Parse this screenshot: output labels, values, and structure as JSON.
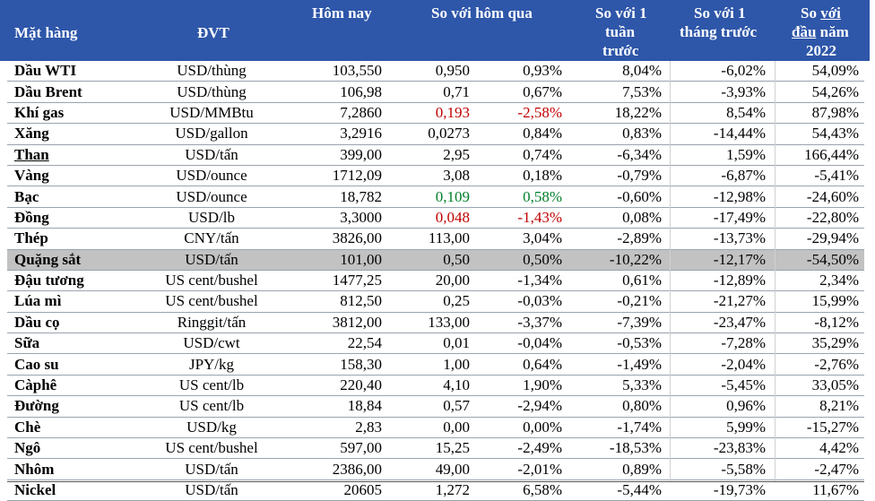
{
  "headers": {
    "item": "Mặt hàng",
    "unit": "ĐVT",
    "today": "Hôm nay",
    "vs_yesterday": "So với hôm qua",
    "vs_week_1": "So với 1",
    "vs_week_2": "tuần",
    "vs_week_3": "trước",
    "vs_month_1": "So với 1",
    "vs_month_2": "tháng trước",
    "ytd_so": "So",
    "ytd_voi": "với",
    "ytd_dau": "đầu",
    "ytd_nam": "năm",
    "ytd_year": "2022"
  },
  "colors": {
    "header_bg": "#2e56a9",
    "header_text": "#ffffff",
    "red": "#c00000",
    "green": "#00802b",
    "highlight_row": "#c2c2c2"
  },
  "rows": [
    {
      "name": "Dầu WTI",
      "unit": "USD/thùng",
      "today": "103,550",
      "chg": "0,950",
      "pct": "0,93%",
      "week": "8,04%",
      "month": "-6,02%",
      "ytd": "54,09%"
    },
    {
      "name": "Dầu Brent",
      "unit": "USD/thùng",
      "today": "106,98",
      "chg": "0,71",
      "pct": "0,67%",
      "week": "7,53%",
      "month": "-3,93%",
      "ytd": "54,26%"
    },
    {
      "name": "Khí gas",
      "unit": "USD/MMBtu",
      "today": "7,2860",
      "chg": "0,193",
      "pct": "-2,58%",
      "week": "18,22%",
      "month": "8,54%",
      "ytd": "87,98%",
      "color": "red"
    },
    {
      "name": "Xăng",
      "unit": "USD/gallon",
      "today": "3,2916",
      "chg": "0,0273",
      "pct": "0,84%",
      "week": "0,83%",
      "month": "-14,44%",
      "ytd": "54,43%"
    },
    {
      "name": "Than",
      "unit": "USD/tấn",
      "today": "399,00",
      "chg": "2,95",
      "pct": "0,74%",
      "week": "-6,34%",
      "month": "1,59%",
      "ytd": "166,44%",
      "underline": true
    },
    {
      "name": "Vàng",
      "unit": "USD/ounce",
      "today": "1712,09",
      "chg": "3,08",
      "pct": "0,18%",
      "week": "-0,79%",
      "month": "-6,87%",
      "ytd": "-5,41%"
    },
    {
      "name": "Bạc",
      "unit": "USD/ounce",
      "today": "18,782",
      "chg": "0,109",
      "pct": "0,58%",
      "week": "-0,60%",
      "month": "-12,98%",
      "ytd": "-24,60%",
      "color": "green"
    },
    {
      "name": "Đồng",
      "unit": "USD/lb",
      "today": "3,3000",
      "chg": "0,048",
      "pct": "-1,43%",
      "week": "0,08%",
      "month": "-17,49%",
      "ytd": "-22,80%",
      "color": "red"
    },
    {
      "name": "Thép",
      "unit": "CNY/tấn",
      "today": "3826,00",
      "chg": "113,00",
      "pct": "3,04%",
      "week": "-2,89%",
      "month": "-13,73%",
      "ytd": "-29,94%"
    },
    {
      "name": "Quặng sắt",
      "unit": "USD/tấn",
      "today": "101,00",
      "chg": "0,50",
      "pct": "0,50%",
      "week": "-10,22%",
      "month": "-12,17%",
      "ytd": "-54,50%",
      "highlight": true
    },
    {
      "name": "Đậu tương",
      "unit": "US cent/bushel",
      "today": "1477,25",
      "chg": "20,00",
      "pct": "-1,34%",
      "week": "0,61%",
      "month": "-12,89%",
      "ytd": "2,34%"
    },
    {
      "name": "Lúa mì",
      "unit": "US cent/bushel",
      "today": "812,50",
      "chg": "0,25",
      "pct": "-0,03%",
      "week": "-0,21%",
      "month": "-21,27%",
      "ytd": "15,99%"
    },
    {
      "name": "Dầu cọ",
      "unit": "Ringgit/tấn",
      "today": "3812,00",
      "chg": "133,00",
      "pct": "-3,37%",
      "week": "-7,39%",
      "month": "-23,47%",
      "ytd": "-8,12%"
    },
    {
      "name": "Sữa",
      "unit": "USD/cwt",
      "today": "22,54",
      "chg": "0,01",
      "pct": "-0,04%",
      "week": "-0,53%",
      "month": "-7,28%",
      "ytd": "35,29%"
    },
    {
      "name": "Cao su",
      "unit": "JPY/kg",
      "today": "158,30",
      "chg": "1,00",
      "pct": "0,64%",
      "week": "-1,49%",
      "month": "-2,04%",
      "ytd": "-2,76%"
    },
    {
      "name": "Càphê",
      "unit": "US cent/lb",
      "today": "220,40",
      "chg": "4,10",
      "pct": "1,90%",
      "week": "5,33%",
      "month": "-5,45%",
      "ytd": "33,05%"
    },
    {
      "name": "Đường",
      "unit": "US cent/lb",
      "today": "18,84",
      "chg": "0,57",
      "pct": "-2,94%",
      "week": "0,80%",
      "month": "0,96%",
      "ytd": "8,21%"
    },
    {
      "name": "Chè",
      "unit": "USD/kg",
      "today": "2,83",
      "chg": "0,00",
      "pct": "0,00%",
      "week": "-1,74%",
      "month": "5,99%",
      "ytd": "-15,27%"
    },
    {
      "name": "Ngô",
      "unit": "US cent/bushel",
      "today": "597,00",
      "chg": "15,25",
      "pct": "-2,49%",
      "week": "-18,53%",
      "month": "-23,83%",
      "ytd": "4,42%"
    },
    {
      "name": "Nhôm",
      "unit": "USD/tấn",
      "today": "2386,00",
      "chg": "49,00",
      "pct": "-2,01%",
      "week": "0,89%",
      "month": "-5,58%",
      "ytd": "-2,47%"
    },
    {
      "name": "Nickel",
      "unit": "USD/tấn",
      "today": "20605",
      "chg": "1,272",
      "pct": "6,58%",
      "week": "-5,44%",
      "month": "-19,73%",
      "ytd": "11,67%"
    }
  ]
}
